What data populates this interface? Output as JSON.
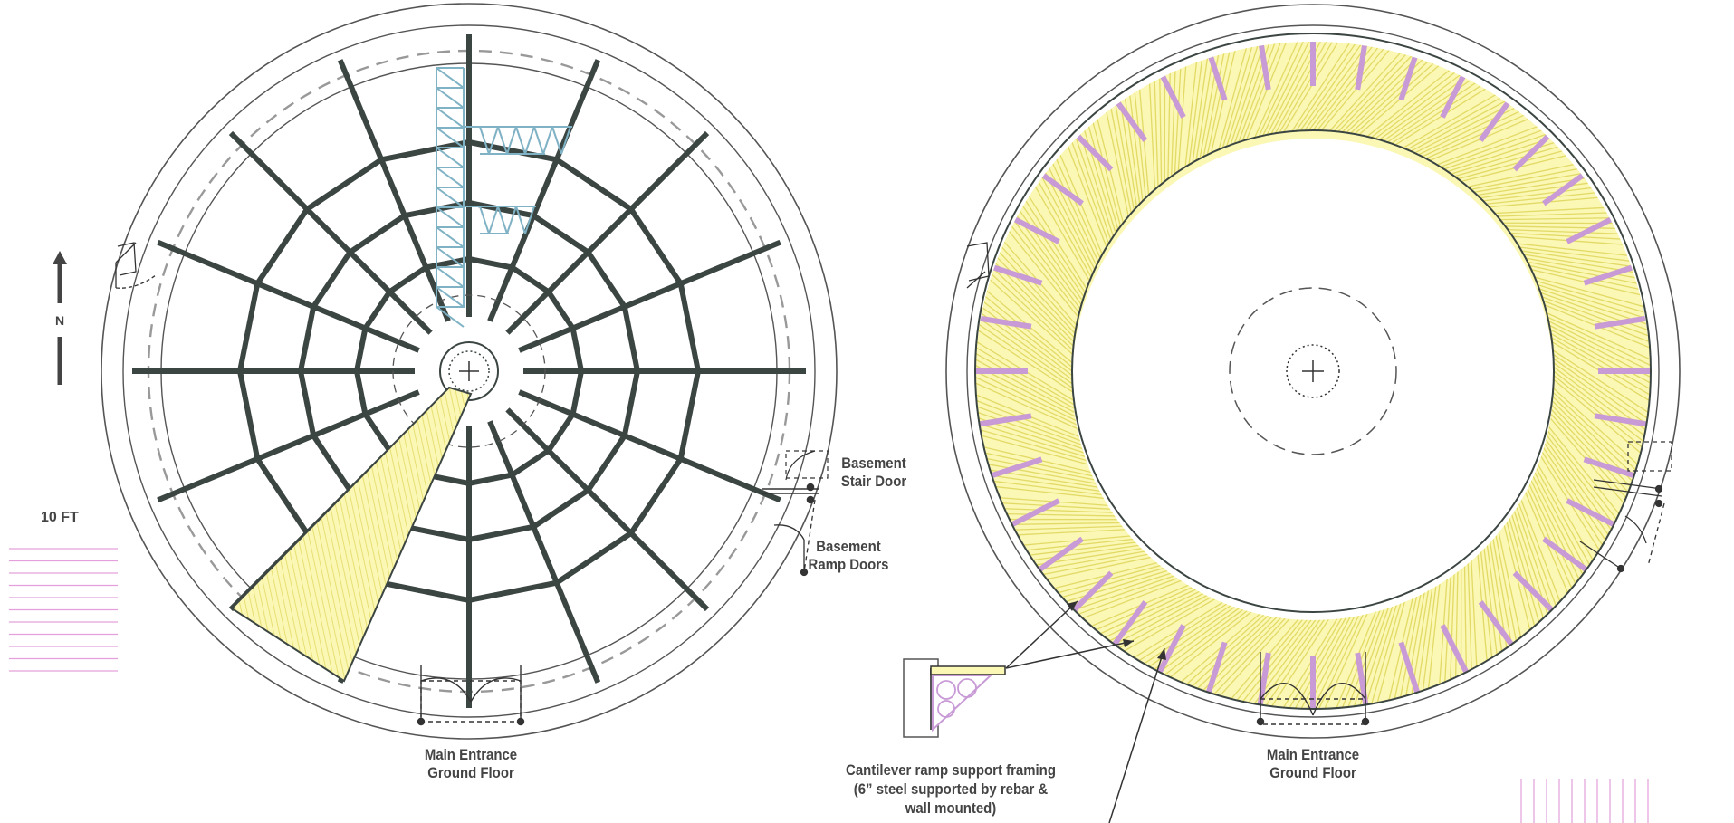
{
  "north_label": "N",
  "scale_label": "10 FT",
  "labels": {
    "basement_stair": [
      "Basement",
      "Stair Door"
    ],
    "basement_ramp": [
      "Basement",
      "Ramp Doors"
    ],
    "entrance_left": [
      "Main Entrance",
      "Ground Floor"
    ],
    "entrance_right": [
      "Main Entrance",
      "Ground Floor"
    ],
    "cantilever": [
      "Cantilever ramp support framing",
      "(6” steel supported by rebar &",
      "wall mounted)"
    ]
  },
  "colors": {
    "structure": "#3b4542",
    "outline": "#555555",
    "dashed": "#999999",
    "truss": "#7fb2c4",
    "ramp_fill": "#fbf7b4",
    "ramp_hatch": "#e2da66",
    "purple": "#c89ad6",
    "scale_lines": "#e3a0dc"
  }
}
